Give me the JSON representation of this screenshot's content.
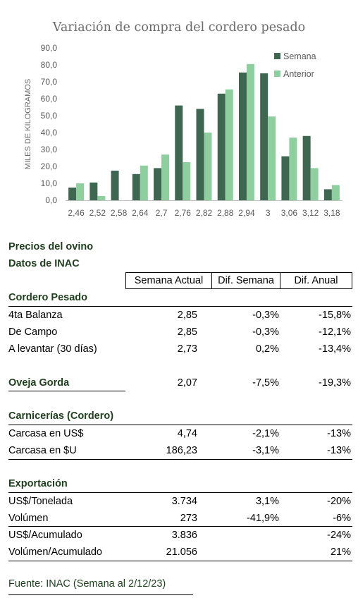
{
  "chart_data": {
    "type": "bar",
    "title": "Variación de compra del cordero pesado",
    "ylabel": "MILES DE KILOGRAMOS",
    "xlabel": "",
    "ylim": [
      0,
      90
    ],
    "yticks": [
      "0,0",
      "10,0",
      "20,0",
      "30,0",
      "40,0",
      "50,0",
      "60,0",
      "70,0",
      "80,0",
      "90,0"
    ],
    "categories": [
      "2,46",
      "2,52",
      "2,58",
      "2,64",
      "2,7",
      "2,76",
      "2,82",
      "2,88",
      "2,94",
      "3",
      "3,06",
      "3,12",
      "3,18"
    ],
    "series": [
      {
        "name": "Semana",
        "color": "#3f6650",
        "values": [
          7.5,
          10.5,
          17.5,
          15.5,
          19,
          56,
          54,
          63,
          75.5,
          75,
          26,
          38,
          6.5
        ]
      },
      {
        "name": "Anterior",
        "color": "#8fcf9f",
        "values": [
          10,
          2.5,
          0,
          20.5,
          27,
          22.5,
          40,
          65.5,
          80.5,
          49.5,
          37,
          19,
          9
        ]
      }
    ],
    "legend_position": "top-right",
    "grid": false
  },
  "table": {
    "title1": "Precios del ovino",
    "title2": "Datos de INAC",
    "headers": [
      "Semana Actual",
      "Dif. Semana",
      "Dif. Anual"
    ],
    "sections": [
      {
        "name": "Cordero Pesado",
        "rows": [
          {
            "label": "4ta Balanza",
            "actual": "2,85",
            "semana": "-0,3%",
            "anual": "-15,8%"
          },
          {
            "label": "De Campo",
            "actual": "2,85",
            "semana": "-0,3%",
            "anual": "-12,1%"
          },
          {
            "label": "A levantar (30 días)",
            "actual": "2,73",
            "semana": "0,2%",
            "anual": "-13,4%"
          }
        ]
      },
      {
        "name": "Oveja Gorda",
        "actual": "2,07",
        "semana": "-7,5%",
        "anual": "-19,3%"
      },
      {
        "name": "Carnicerías (Cordero)",
        "rows": [
          {
            "label": "Carcasa en US$",
            "actual": "4,74",
            "semana": "-2,1%",
            "anual": "-13%"
          },
          {
            "label": "Carcasa en $U",
            "actual": "186,23",
            "semana": "-3,1%",
            "anual": "-13%"
          }
        ]
      },
      {
        "name": "Exportación",
        "rows": [
          {
            "label": "US$/Tonelada",
            "actual": "3.734",
            "semana": "3,1%",
            "anual": "-20%"
          },
          {
            "label": "Volúmen",
            "actual": "273",
            "semana": "-41,9%",
            "anual": "-6%"
          },
          {
            "label": "US$/Acumulado",
            "actual": "3.836",
            "semana": "",
            "anual": "-24%"
          },
          {
            "label": "Volúmen/Acumulado",
            "actual": "21.056",
            "semana": "",
            "anual": "21%"
          }
        ]
      }
    ],
    "source": "Fuente: INAC (Semana al 2/12/23)"
  }
}
